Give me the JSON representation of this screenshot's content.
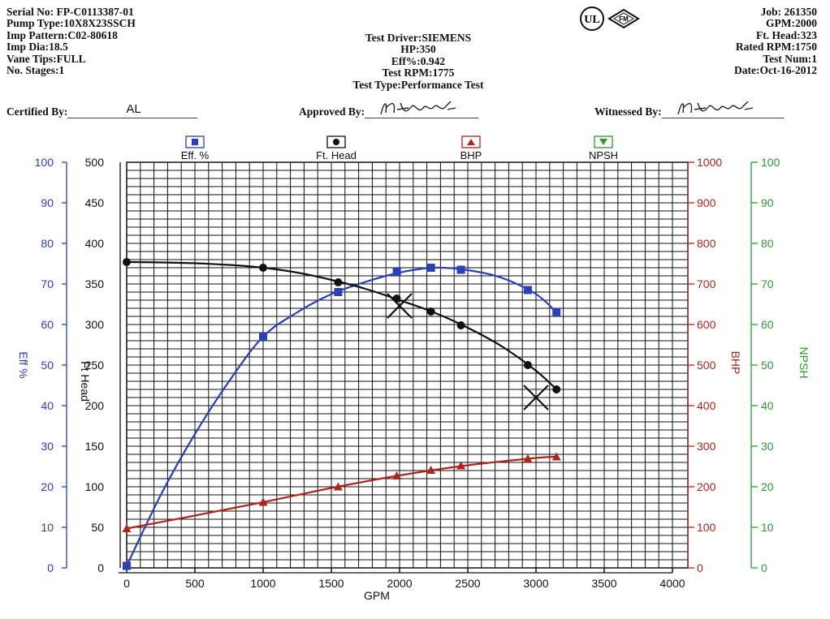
{
  "header": {
    "left": [
      "Serial No: FP-C0113387-01",
      "Pump Type:10X8X23SSCH",
      "Imp Pattern:C02-80618",
      "Imp Dia:18.5",
      "Vane Tips:FULL",
      "No. Stages:1"
    ],
    "middle": [
      "Test Driver:SIEMENS",
      "HP:350",
      "Eff%:0.942",
      "Test RPM:1775",
      "Test Type:Performance Test"
    ],
    "right": [
      "Job: 261350",
      "GPM:2000",
      "Ft. Head:323",
      "Rated RPM:1750",
      "Test Num:1",
      "Date:Oct-16-2012"
    ],
    "certified_label": "Certified By:",
    "certified_value": "AL",
    "approved_label": "Approved By:",
    "witnessed_label": "Witnessed By:"
  },
  "logos": {
    "ul_text": "UL",
    "fm_text": "FM"
  },
  "colors": {
    "eff": "#2a3fb8",
    "head": "#111111",
    "bhp": "#b0241e",
    "npsh": "#2e9a32",
    "grid": "#111111"
  },
  "chart_data": {
    "type": "line",
    "xlabel": "GPM",
    "xlim": [
      0,
      4000
    ],
    "x_ticks": [
      "0",
      "500",
      "1000",
      "1500",
      "2000",
      "2500",
      "3000",
      "3500",
      "4000"
    ],
    "axes": {
      "eff": {
        "label": "Eff %",
        "ylim": [
          0,
          100
        ],
        "ticks": [
          "0",
          "10",
          "20",
          "30",
          "40",
          "50",
          "60",
          "70",
          "80",
          "90",
          "100"
        ]
      },
      "head": {
        "label": "Ft Head",
        "ylim": [
          0,
          500
        ],
        "ticks": [
          "0",
          "50",
          "100",
          "150",
          "200",
          "250",
          "300",
          "350",
          "400",
          "450",
          "500"
        ]
      },
      "bhp": {
        "label": "BHP",
        "ylim": [
          0,
          1000
        ],
        "ticks": [
          "0",
          "100",
          "200",
          "300",
          "400",
          "500",
          "600",
          "700",
          "800",
          "900",
          "1000"
        ]
      },
      "npsh": {
        "label": "NPSH",
        "ylim": [
          0,
          100
        ],
        "ticks": [
          "0",
          "10",
          "20",
          "30",
          "40",
          "50",
          "60",
          "70",
          "80",
          "90",
          "100"
        ]
      }
    },
    "legend": [
      {
        "key": "eff",
        "label": "Eff. %"
      },
      {
        "key": "head",
        "label": "Ft. Head"
      },
      {
        "key": "bhp",
        "label": "BHP"
      },
      {
        "key": "npsh",
        "label": "NPSH"
      }
    ],
    "series": [
      {
        "name": "Eff. %",
        "axis": "eff",
        "marker": "square",
        "x": [
          0,
          1000,
          1550,
          1980,
          2230,
          2450,
          2940,
          3150
        ],
        "y": [
          0.5,
          57,
          68,
          73,
          74,
          73.5,
          68.5,
          63
        ]
      },
      {
        "name": "Ft. Head",
        "axis": "head",
        "marker": "circle",
        "x": [
          0,
          1000,
          1550,
          1980,
          2230,
          2450,
          2940,
          3150
        ],
        "y": [
          377,
          370,
          352,
          332,
          316,
          299,
          250,
          220
        ]
      },
      {
        "name": "BHP",
        "axis": "bhp",
        "marker": "triangle",
        "x": [
          0,
          1000,
          1550,
          1980,
          2230,
          2450,
          2940,
          3150
        ],
        "y": [
          97,
          162,
          200,
          227,
          241,
          252,
          269,
          274
        ]
      }
    ],
    "rated_points": [
      {
        "x": 2000,
        "head": 323
      },
      {
        "x": 3000,
        "head": 210
      }
    ],
    "curves": {
      "eff_fit": {
        "x": [
          0,
          250,
          500,
          750,
          1000,
          1250,
          1500,
          1750,
          2000,
          2250,
          2500,
          2750,
          3000,
          3150
        ],
        "y": [
          0.5,
          18,
          33,
          46,
          57,
          63,
          67.5,
          70.5,
          72.8,
          74,
          73.4,
          71.5,
          67.5,
          63
        ]
      },
      "head_fit": {
        "x": [
          0,
          250,
          500,
          750,
          1000,
          1250,
          1500,
          1750,
          2000,
          2250,
          2500,
          2750,
          3000,
          3150
        ],
        "y": [
          377,
          376.5,
          375.5,
          373.5,
          370,
          364,
          355,
          344,
          330,
          315,
          296,
          273,
          243,
          220
        ]
      },
      "bhp_fit": {
        "x": [
          0,
          500,
          1000,
          1500,
          2000,
          2500,
          3000,
          3150
        ],
        "y": [
          97,
          129,
          162,
          197,
          228,
          253,
          271,
          274
        ]
      }
    }
  }
}
